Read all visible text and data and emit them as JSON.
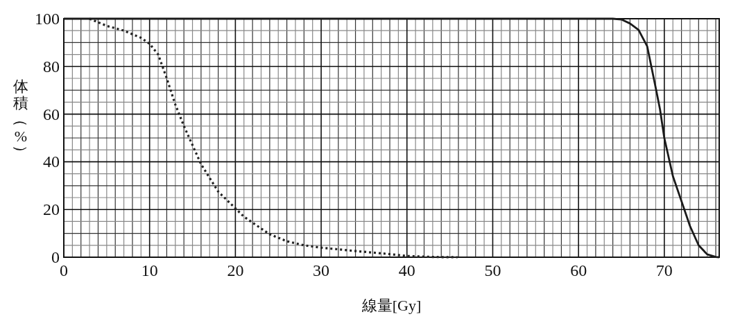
{
  "chart_data": {
    "type": "line",
    "xlabel": "線量[Gy]",
    "ylabel": "体積（%）",
    "grid": true,
    "marker": "none",
    "xlim": [
      0,
      76.4
    ],
    "ylim": [
      0,
      100
    ],
    "xticks": [
      0,
      {
        "value": 1,
        "label": null
      },
      {
        "value": 2,
        "label": null
      },
      {
        "value": 3,
        "label": null
      },
      {
        "value": 4,
        "label": null
      },
      {
        "value": 5,
        "label": null
      },
      {
        "value": 6,
        "label": null
      },
      {
        "value": 7,
        "label": null
      },
      {
        "value": 8,
        "label": null
      },
      {
        "value": 9,
        "label": null
      },
      10,
      {
        "value": 11,
        "label": null
      },
      {
        "value": 12,
        "label": null
      },
      {
        "value": 13,
        "label": null
      },
      {
        "value": 14,
        "label": null
      },
      {
        "value": 15,
        "label": null
      },
      {
        "value": 16,
        "label": null
      },
      {
        "value": 17,
        "label": null
      },
      {
        "value": 18,
        "label": null
      },
      {
        "value": 19,
        "label": null
      },
      20,
      {
        "value": 21,
        "label": null
      },
      {
        "value": 22,
        "label": null
      },
      {
        "value": 23,
        "label": null
      },
      {
        "value": 24,
        "label": null
      },
      {
        "value": 25,
        "label": null
      },
      {
        "value": 26,
        "label": null
      },
      {
        "value": 27,
        "label": null
      },
      {
        "value": 28,
        "label": null
      },
      {
        "value": 29,
        "label": null
      },
      30,
      {
        "value": 31,
        "label": null
      },
      {
        "value": 32,
        "label": null
      },
      {
        "value": 33,
        "label": null
      },
      {
        "value": 34,
        "label": null
      },
      {
        "value": 35,
        "label": null
      },
      {
        "value": 36,
        "label": null
      },
      {
        "value": 37,
        "label": null
      },
      {
        "value": 38,
        "label": null
      },
      {
        "value": 39,
        "label": null
      },
      40,
      {
        "value": 41,
        "label": null
      },
      {
        "value": 42,
        "label": null
      },
      {
        "value": 43,
        "label": null
      },
      {
        "value": 44,
        "label": null
      },
      {
        "value": 45,
        "label": null
      },
      {
        "value": 46,
        "label": null
      },
      {
        "value": 47,
        "label": null
      },
      {
        "value": 48,
        "label": null
      },
      {
        "value": 49,
        "label": null
      },
      50,
      {
        "value": 51,
        "label": null
      },
      {
        "value": 52,
        "label": null
      },
      {
        "value": 53,
        "label": null
      },
      {
        "value": 54,
        "label": null
      },
      {
        "value": 55,
        "label": null
      },
      {
        "value": 56,
        "label": null
      },
      {
        "value": 57,
        "label": null
      },
      {
        "value": 58,
        "label": null
      },
      {
        "value": 59,
        "label": null
      },
      60,
      {
        "value": 61,
        "label": null
      },
      {
        "value": 62,
        "label": null
      },
      {
        "value": 63,
        "label": null
      },
      {
        "value": 64,
        "label": null
      },
      {
        "value": 65,
        "label": null
      },
      {
        "value": 66,
        "label": null
      },
      {
        "value": 67,
        "label": null
      },
      {
        "value": 68,
        "label": null
      },
      {
        "value": 69,
        "label": null
      },
      70,
      {
        "value": 71,
        "label": null
      },
      {
        "value": 72,
        "label": null
      },
      {
        "value": 73,
        "label": null
      },
      {
        "value": 74,
        "label": null
      },
      {
        "value": 75,
        "label": null
      },
      {
        "value": 76,
        "label": null
      }
    ],
    "yticks": [
      0,
      {
        "value": 5,
        "label": null
      },
      {
        "value": 10,
        "label": null
      },
      {
        "value": 15,
        "label": null
      },
      20,
      {
        "value": 25,
        "label": null
      },
      {
        "value": 30,
        "label": null
      },
      {
        "value": 35,
        "label": null
      },
      40,
      {
        "value": 45,
        "label": null
      },
      {
        "value": 50,
        "label": null
      },
      {
        "value": 55,
        "label": null
      },
      60,
      {
        "value": 65,
        "label": null
      },
      {
        "value": 70,
        "label": null
      },
      {
        "value": 75,
        "label": null
      },
      80,
      {
        "value": 85,
        "label": null
      },
      {
        "value": 90,
        "label": null
      },
      {
        "value": 95,
        "label": null
      },
      100
    ],
    "series": [
      {
        "color": "#222222",
        "line_style": "dotted",
        "x": [
          3,
          5,
          7,
          9,
          10,
          11,
          12,
          13,
          14,
          16,
          18,
          20,
          21,
          22,
          24,
          26,
          28,
          30,
          34,
          38,
          40,
          43,
          45.9
        ],
        "values": [
          100,
          97,
          95,
          92,
          89.5,
          85,
          75,
          64,
          55,
          39,
          27.5,
          20.5,
          17,
          14.5,
          9.6,
          6.7,
          5,
          4,
          2.6,
          1.3,
          0.5,
          0.1,
          0
        ]
      },
      {
        "color": "#1a1a1a",
        "line_style": "solid",
        "x": [
          0,
          63,
          64,
          65,
          66,
          67,
          68,
          69,
          69.5,
          70,
          71,
          72,
          73,
          74,
          75,
          76,
          76.4
        ],
        "values": [
          100,
          100,
          100,
          99.7,
          98,
          95.3,
          88.5,
          71,
          62,
          50,
          34,
          23.5,
          13,
          5,
          1.2,
          0.1,
          0
        ]
      }
    ]
  }
}
